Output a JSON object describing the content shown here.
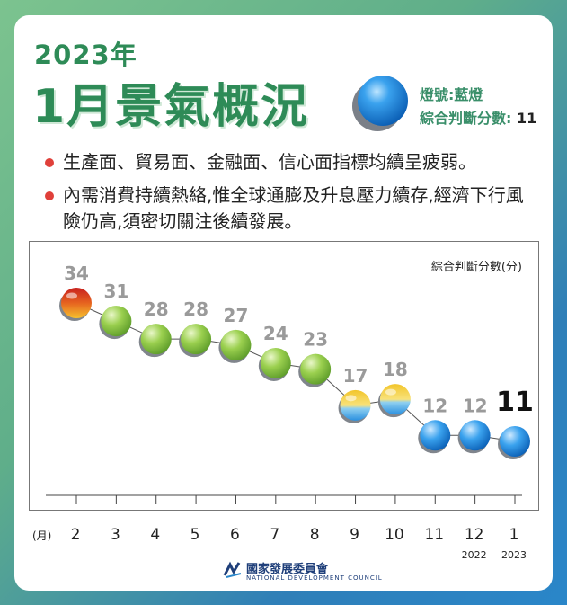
{
  "header": {
    "year": "2023年",
    "title": "1月景氣概況",
    "signal_label": "燈號:藍燈",
    "score_label": "綜合判斷分數:",
    "score_value": "11"
  },
  "bullets": [
    "生產面、貿易面、金融面、信心面指標均續呈疲弱。",
    "內需消費持續熱絡,惟全球通膨及升息壓力續存,經濟下行風險仍高,須密切關注後續發展。"
  ],
  "footer": {
    "org_name": "國家發展委員會",
    "org_name_en": "NATIONAL DEVELOPMENT COUNCIL"
  },
  "colors": {
    "red": "#d6302b",
    "yellow_red": "#f0a020",
    "green": "#7cbf43",
    "yellow_blue": "#e8c23a",
    "blue": "#1f7fd6",
    "brand_green": "#2e8b57"
  },
  "chart_data": {
    "type": "line",
    "title": "",
    "ylabel": "綜合判斷分數(分)",
    "xlabel": "(月)",
    "categories": [
      "2",
      "3",
      "4",
      "5",
      "6",
      "7",
      "8",
      "9",
      "10",
      "11",
      "12",
      "1"
    ],
    "year_labels": [
      "",
      "",
      "",
      "",
      "",
      "",
      "",
      "",
      "",
      "",
      "2022",
      "2023"
    ],
    "values": [
      34,
      31,
      28,
      28,
      27,
      24,
      23,
      17,
      18,
      12,
      12,
      11
    ],
    "signals": [
      "yellow-red",
      "green",
      "green",
      "green",
      "green",
      "green",
      "green",
      "yellow-blue",
      "yellow-blue",
      "blue",
      "blue",
      "blue"
    ],
    "highlight_last": true,
    "ylim": [
      10,
      35
    ],
    "grid": false
  }
}
